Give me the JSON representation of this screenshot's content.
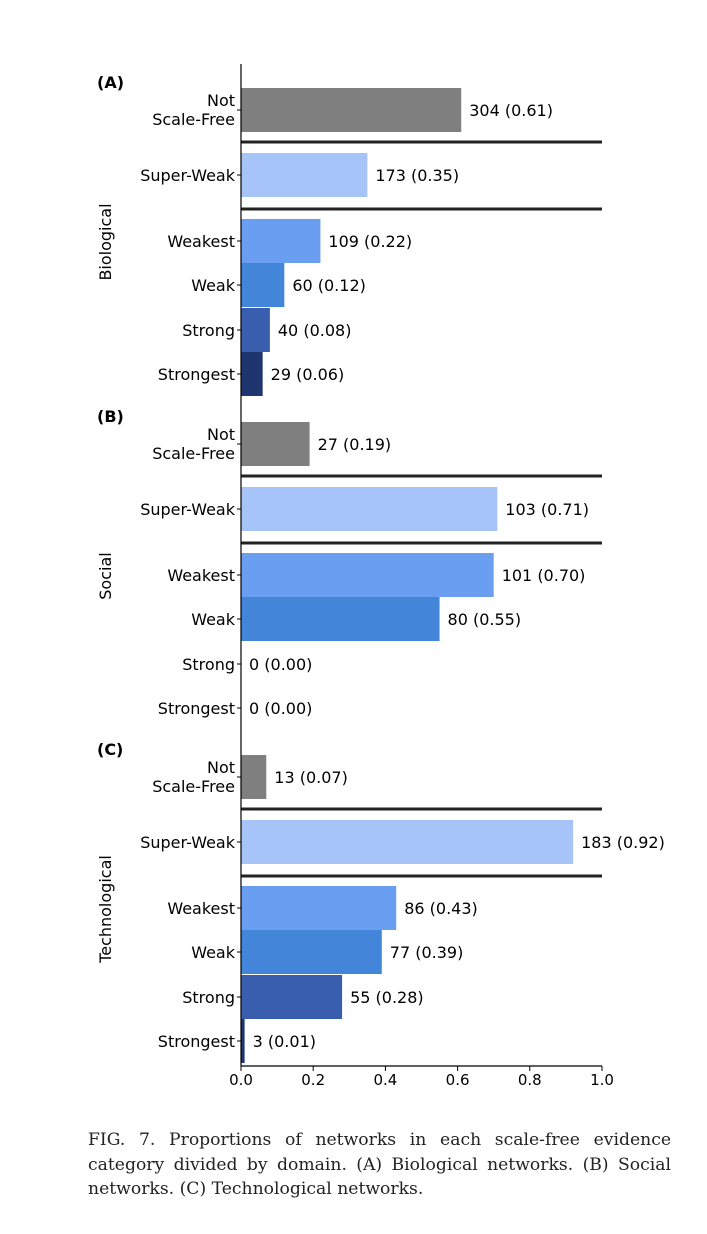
{
  "chart_data": {
    "type": "bar",
    "orientation": "horizontal",
    "xlim": [
      0.0,
      1.0
    ],
    "xticks": [
      "0.0",
      "0.2",
      "0.4",
      "0.6",
      "0.8",
      "1.0"
    ],
    "colors": {
      "Not Scale-Free": "#7f7f7f",
      "Super-Weak": "#a6c4f7",
      "Weakest": "#6a9ef0",
      "Weak": "#4285d9",
      "Strong": "#3a5eae",
      "Strongest": "#1f3570"
    },
    "panels": [
      {
        "panel_label": "(A)",
        "domain": "Biological",
        "categories": [
          {
            "label": "Not\nScale-Free",
            "key": "Not Scale-Free",
            "count": 304,
            "value": 0.61,
            "annotation": "304 (0.61)"
          },
          {
            "label": "Super-Weak",
            "key": "Super-Weak",
            "count": 173,
            "value": 0.35,
            "annotation": "173 (0.35)"
          },
          {
            "label": "Weakest",
            "key": "Weakest",
            "count": 109,
            "value": 0.22,
            "annotation": "109 (0.22)"
          },
          {
            "label": "Weak",
            "key": "Weak",
            "count": 60,
            "value": 0.12,
            "annotation": "60 (0.12)"
          },
          {
            "label": "Strong",
            "key": "Strong",
            "count": 40,
            "value": 0.08,
            "annotation": "40 (0.08)"
          },
          {
            "label": "Strongest",
            "key": "Strongest",
            "count": 29,
            "value": 0.06,
            "annotation": "29 (0.06)"
          }
        ]
      },
      {
        "panel_label": "(B)",
        "domain": "Social",
        "categories": [
          {
            "label": "Not\nScale-Free",
            "key": "Not Scale-Free",
            "count": 27,
            "value": 0.19,
            "annotation": "27 (0.19)"
          },
          {
            "label": "Super-Weak",
            "key": "Super-Weak",
            "count": 103,
            "value": 0.71,
            "annotation": "103 (0.71)"
          },
          {
            "label": "Weakest",
            "key": "Weakest",
            "count": 101,
            "value": 0.7,
            "annotation": "101 (0.70)"
          },
          {
            "label": "Weak",
            "key": "Weak",
            "count": 80,
            "value": 0.55,
            "annotation": "80 (0.55)"
          },
          {
            "label": "Strong",
            "key": "Strong",
            "count": 0,
            "value": 0.0,
            "annotation": "0 (0.00)"
          },
          {
            "label": "Strongest",
            "key": "Strongest",
            "count": 0,
            "value": 0.0,
            "annotation": "0 (0.00)"
          }
        ]
      },
      {
        "panel_label": "(C)",
        "domain": "Technological",
        "categories": [
          {
            "label": "Not\nScale-Free",
            "key": "Not Scale-Free",
            "count": 13,
            "value": 0.07,
            "annotation": "13 (0.07)"
          },
          {
            "label": "Super-Weak",
            "key": "Super-Weak",
            "count": 183,
            "value": 0.92,
            "annotation": "183 (0.92)"
          },
          {
            "label": "Weakest",
            "key": "Weakest",
            "count": 86,
            "value": 0.43,
            "annotation": "86 (0.43)"
          },
          {
            "label": "Weak",
            "key": "Weak",
            "count": 77,
            "value": 0.39,
            "annotation": "77 (0.39)"
          },
          {
            "label": "Strong",
            "key": "Strong",
            "count": 55,
            "value": 0.28,
            "annotation": "55 (0.28)"
          },
          {
            "label": "Strongest",
            "key": "Strongest",
            "count": 3,
            "value": 0.01,
            "annotation": "3 (0.01)"
          }
        ]
      }
    ]
  },
  "caption": {
    "text": "FIG. 7. Proportions of networks in each scale-free evidence category divided by domain. (A) Biological networks. (B) Social networks. (C) Technological networks."
  }
}
